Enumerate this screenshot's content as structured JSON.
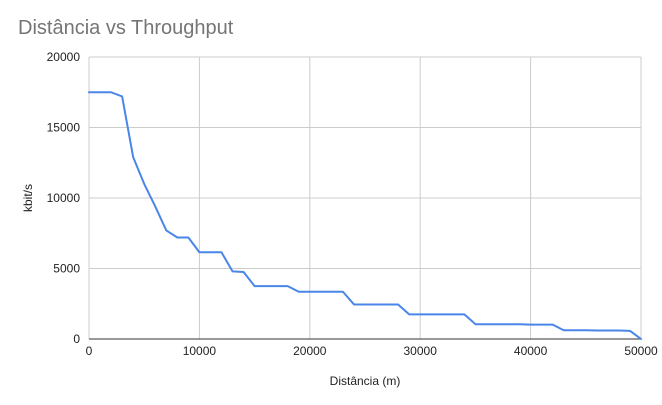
{
  "chart_data": {
    "type": "line",
    "title": "Distância vs Throughput",
    "xlabel": "Distância (m)",
    "ylabel": "kbit/s",
    "xlim": [
      0,
      50000
    ],
    "ylim": [
      0,
      20000
    ],
    "xticks": [
      "0",
      "10000",
      "20000",
      "30000",
      "40000",
      "50000"
    ],
    "yticks": [
      "0",
      "5000",
      "10000",
      "15000",
      "20000"
    ],
    "grid": true,
    "legend": "none",
    "series": [
      {
        "color": "#4a86e8",
        "x": [
          0,
          2000,
          3000,
          4000,
          5000,
          6000,
          7000,
          8000,
          9000,
          10000,
          11000,
          12000,
          13000,
          14000,
          15000,
          16000,
          17000,
          18000,
          19000,
          20000,
          21000,
          22000,
          23000,
          24000,
          25000,
          26000,
          27000,
          28000,
          29000,
          30000,
          31000,
          32000,
          33000,
          34000,
          35000,
          36000,
          37000,
          38000,
          39000,
          40000,
          41000,
          42000,
          43000,
          44000,
          45000,
          46000,
          47000,
          48000,
          49000,
          50000
        ],
        "y": [
          17500,
          17500,
          17200,
          12900,
          11000,
          9400,
          7700,
          7200,
          7200,
          6150,
          6150,
          6150,
          4800,
          4750,
          3750,
          3750,
          3750,
          3750,
          3350,
          3350,
          3350,
          3350,
          3350,
          2450,
          2450,
          2450,
          2450,
          2450,
          1750,
          1750,
          1750,
          1750,
          1750,
          1750,
          1050,
          1050,
          1050,
          1050,
          1050,
          1020,
          1020,
          1020,
          620,
          620,
          620,
          600,
          600,
          600,
          580,
          0
        ]
      }
    ]
  }
}
